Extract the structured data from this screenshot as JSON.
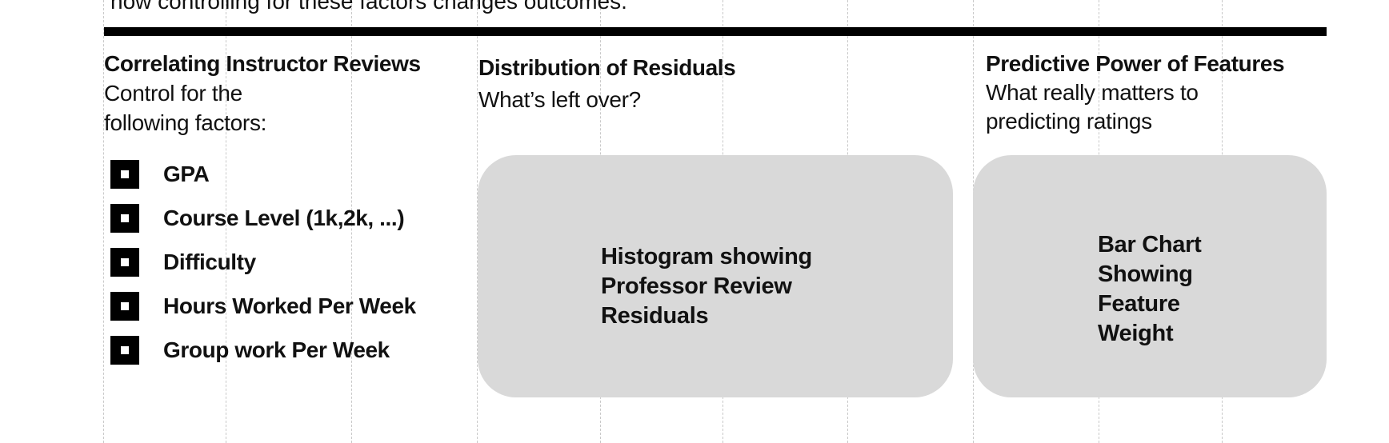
{
  "intro_fragment": "how controlling for these factors changes outcomes.",
  "sections": {
    "controls": {
      "title": "Correlating Instructor Reviews",
      "subtitle_line1": "Control for the",
      "subtitle_line2": "following factors:",
      "factors": [
        "GPA",
        "Course Level (1k,2k, ...)",
        "Difficulty",
        "Hours Worked Per Week",
        "Group work Per Week"
      ]
    },
    "residuals": {
      "title": "Distribution of Residuals",
      "subtitle": "What’s left over?",
      "placeholder_lines": [
        "Histogram showing",
        "Professor Review",
        "Residuals"
      ]
    },
    "features": {
      "title": "Predictive Power of Features",
      "subtitle_line1": "What really matters to",
      "subtitle_line2": "predicting ratings",
      "placeholder_lines": [
        "Bar Chart",
        "Showing",
        "Feature",
        "Weight"
      ]
    }
  },
  "colors": {
    "rule": "#000000",
    "placeholder_fill": "#d9d9d9",
    "gridline": "#c9c9c9"
  }
}
